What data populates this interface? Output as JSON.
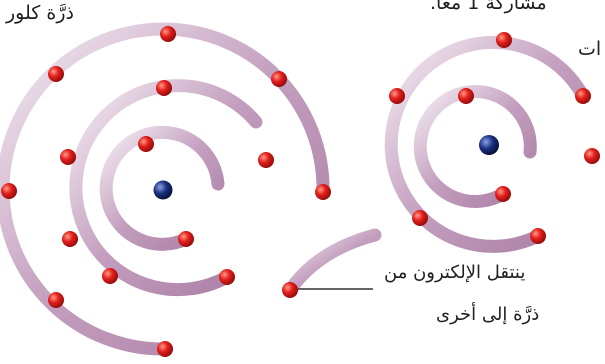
{
  "labels": {
    "chlorine_atom": "ذرَّة كلور",
    "top_text_1": "مشاركة  1  معاً.",
    "top_text_2": "ات",
    "transfer_line1": "ينتقل الإلكترون من",
    "transfer_line2": "ذرَّة إلى أخرى"
  },
  "colors": {
    "shell": "#b98db4",
    "shell_highlight": "#f3ebf2",
    "electron": "#e01b1b",
    "nucleus": "#0d1f5c",
    "leader_line": "#333333"
  }
}
